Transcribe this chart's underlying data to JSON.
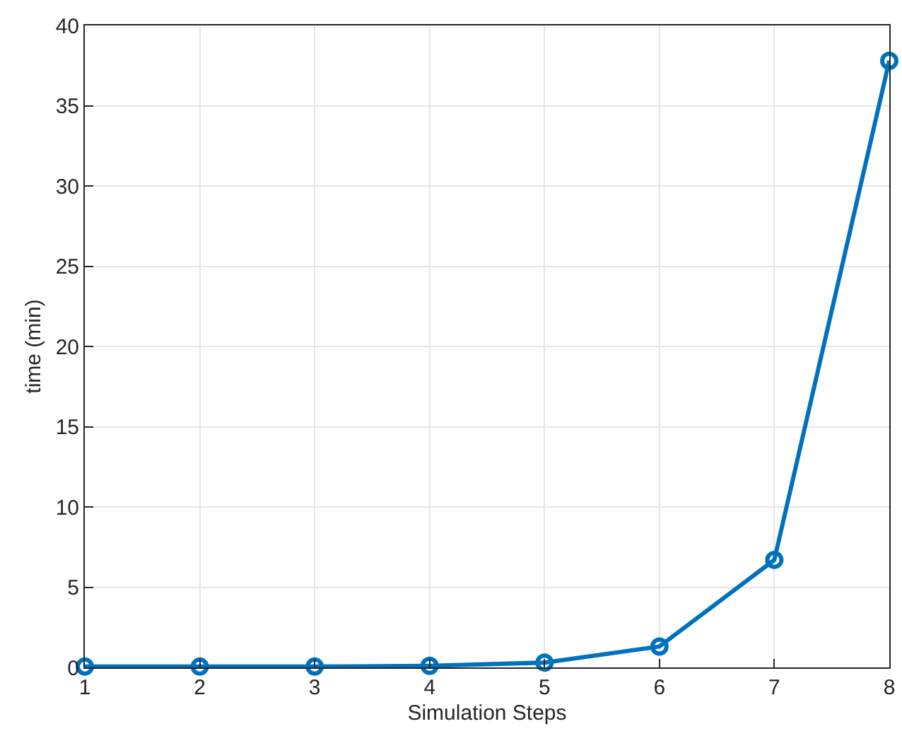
{
  "chart_data": {
    "type": "line",
    "xlabel": "Simulation Steps",
    "ylabel": "time (min)",
    "x": [
      1,
      2,
      3,
      4,
      5,
      6,
      7,
      8
    ],
    "series": [
      {
        "color": "#0072bd",
        "values": [
          0.05,
          0.05,
          0.05,
          0.1,
          0.3,
          1.3,
          6.7,
          37.8
        ]
      }
    ],
    "xlim": [
      1,
      8
    ],
    "xticks": [
      1,
      2,
      3,
      4,
      5,
      6,
      7,
      8
    ],
    "ylim": [
      0,
      40
    ],
    "yticks": [
      0,
      5,
      10,
      15,
      20,
      25,
      30,
      35,
      40
    ],
    "grid": true,
    "marker": "circle",
    "line_style": "solid",
    "legend": false
  }
}
